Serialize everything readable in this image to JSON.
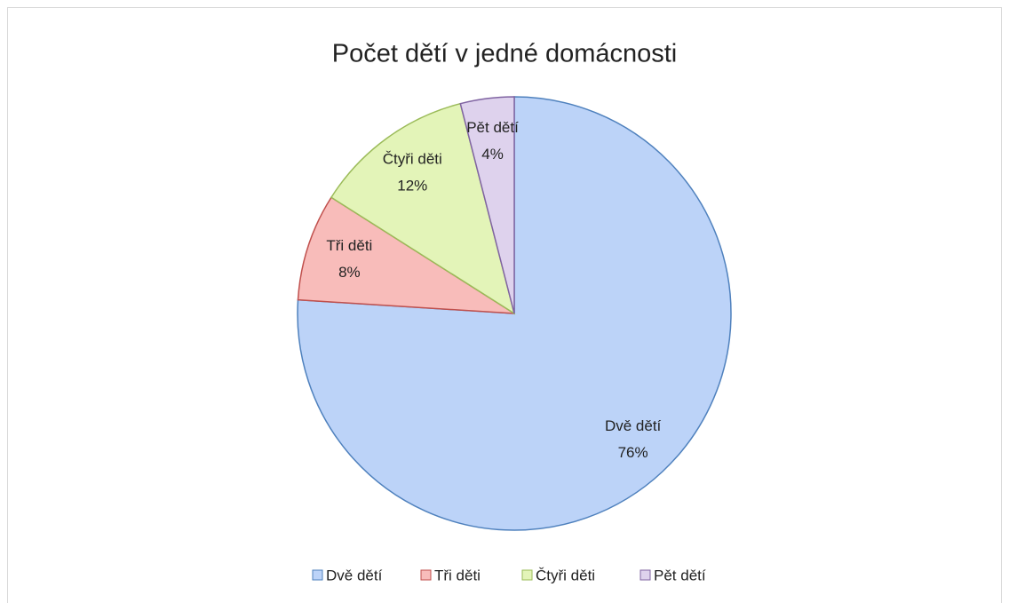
{
  "chart_data": {
    "type": "pie",
    "title": "Počet dětí v jedné domácnosti",
    "categories": [
      "Dvě dětí",
      "Tři děti",
      "Čtyři děti",
      "Pět dětí"
    ],
    "values": [
      76,
      8,
      12,
      4
    ],
    "value_labels": [
      "76%",
      "8%",
      "12%",
      "4%"
    ],
    "colors": [
      "#bcd3f8",
      "#f8bcba",
      "#e3f4b8",
      "#ded2ed"
    ],
    "edge_colors": [
      "#4f81bd",
      "#c0504d",
      "#9bbb59",
      "#8064a2"
    ],
    "legend": "bottom"
  }
}
